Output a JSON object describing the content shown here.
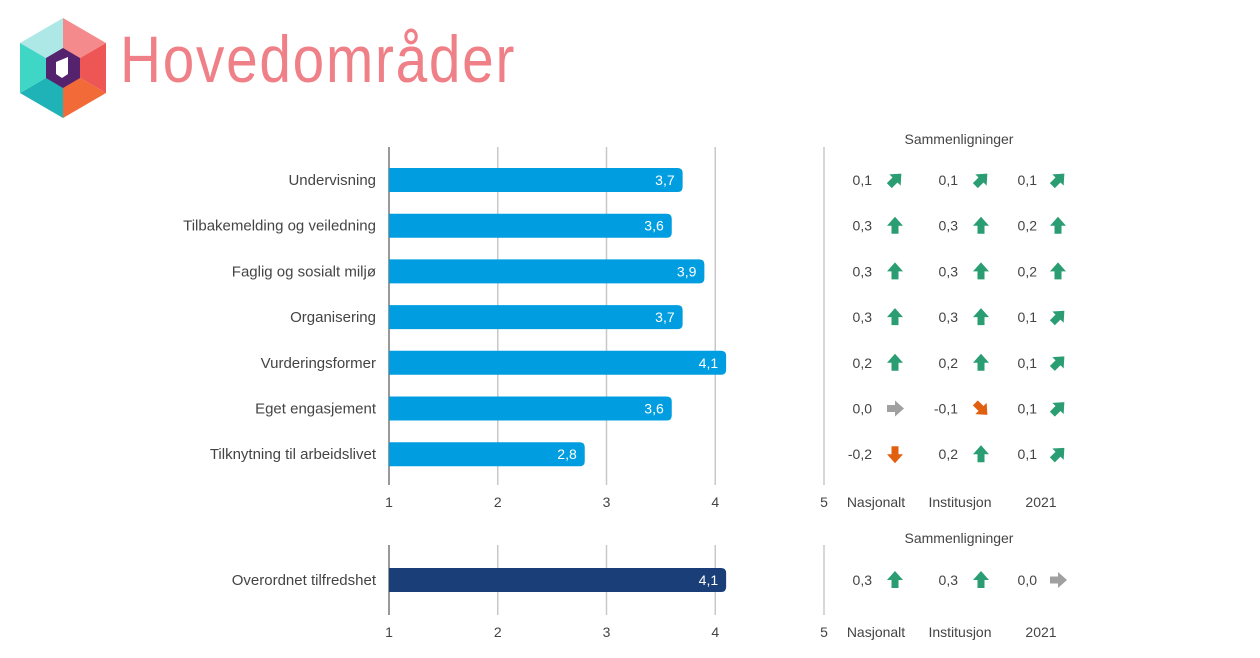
{
  "header": {
    "title": "Hovedområder",
    "logo_icon": "hexagon-logo-icon"
  },
  "colors": {
    "title": "#f08088",
    "bar_main": "#009ee0",
    "bar_overall": "#1a3e78",
    "arrow_up": "#2a9d73",
    "arrow_down": "#e06010",
    "arrow_flat": "#a0a0a0",
    "gridline": "#c8c8c8"
  },
  "chart_data": [
    {
      "type": "bar",
      "orientation": "horizontal",
      "categories": [
        "Undervisning",
        "Tilbakemelding og veiledning",
        "Faglig og sosialt miljø",
        "Organisering",
        "Vurderingsformer",
        "Eget engasjement",
        "Tilknytning til arbeidslivet"
      ],
      "values": [
        3.7,
        3.6,
        3.9,
        3.7,
        4.1,
        3.6,
        2.8
      ],
      "value_labels": [
        "3,7",
        "3,6",
        "3,9",
        "3,7",
        "4,1",
        "3,6",
        "2,8"
      ],
      "xlim": [
        1,
        5
      ],
      "xticks": [
        "1",
        "2",
        "3",
        "4",
        "5"
      ],
      "grid": true,
      "comparisons": {
        "title": "Sammenligninger",
        "columns": [
          "Nasjonalt",
          "Institusjon",
          "2021"
        ],
        "rows": [
          [
            {
              "v": "0,1",
              "dir": "up-right"
            },
            {
              "v": "0,1",
              "dir": "up-right"
            },
            {
              "v": "0,1",
              "dir": "up-right"
            }
          ],
          [
            {
              "v": "0,3",
              "dir": "up"
            },
            {
              "v": "0,3",
              "dir": "up"
            },
            {
              "v": "0,2",
              "dir": "up"
            }
          ],
          [
            {
              "v": "0,3",
              "dir": "up"
            },
            {
              "v": "0,3",
              "dir": "up"
            },
            {
              "v": "0,2",
              "dir": "up"
            }
          ],
          [
            {
              "v": "0,3",
              "dir": "up"
            },
            {
              "v": "0,3",
              "dir": "up"
            },
            {
              "v": "0,1",
              "dir": "up-right"
            }
          ],
          [
            {
              "v": "0,2",
              "dir": "up"
            },
            {
              "v": "0,2",
              "dir": "up"
            },
            {
              "v": "0,1",
              "dir": "up-right"
            }
          ],
          [
            {
              "v": "0,0",
              "dir": "flat"
            },
            {
              "v": "-0,1",
              "dir": "down-right"
            },
            {
              "v": "0,1",
              "dir": "up-right"
            }
          ],
          [
            {
              "v": "-0,2",
              "dir": "down"
            },
            {
              "v": "0,2",
              "dir": "up"
            },
            {
              "v": "0,1",
              "dir": "up-right"
            }
          ]
        ]
      }
    },
    {
      "type": "bar",
      "orientation": "horizontal",
      "categories": [
        "Overordnet tilfredshet"
      ],
      "values": [
        4.1
      ],
      "value_labels": [
        "4,1"
      ],
      "xlim": [
        1,
        5
      ],
      "xticks": [
        "1",
        "2",
        "3",
        "4",
        "5"
      ],
      "grid": true,
      "comparisons": {
        "title": "Sammenligninger",
        "columns": [
          "Nasjonalt",
          "Institusjon",
          "2021"
        ],
        "rows": [
          [
            {
              "v": "0,3",
              "dir": "up"
            },
            {
              "v": "0,3",
              "dir": "up"
            },
            {
              "v": "0,0",
              "dir": "flat"
            }
          ]
        ]
      }
    }
  ]
}
